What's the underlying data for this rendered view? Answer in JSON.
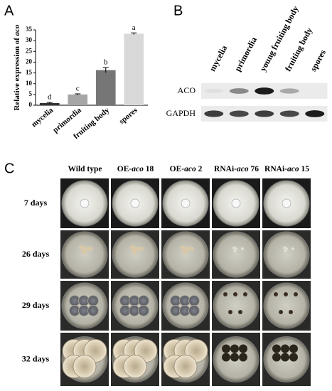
{
  "panel_labels": [
    "A",
    "B",
    "C"
  ],
  "chart_data": {
    "type": "bar",
    "ylabel": {
      "text": "Relative expression of ",
      "italic": "aco"
    },
    "categories": [
      "mycelia",
      "primordia",
      "fruiting body",
      "spores"
    ],
    "values": [
      1,
      5,
      16.3,
      33.2
    ],
    "errors": [
      0.3,
      0.3,
      1.2,
      0.4
    ],
    "annotations": [
      "d",
      "c",
      "b",
      "a"
    ],
    "colors": [
      "#333333",
      "#a6a6a6",
      "#767676",
      "#d9d9d9"
    ],
    "ylim": [
      0,
      35
    ],
    "yticks": [
      0,
      5,
      10,
      15,
      20,
      25,
      30,
      35
    ]
  },
  "western_blot": {
    "lanes": [
      "mycelia",
      "primordia",
      "young fruiting body",
      "fruiting body",
      "spores"
    ],
    "rows": [
      "ACO",
      "GAPDH"
    ]
  },
  "growth": {
    "columns": [
      {
        "text": "Wild type"
      },
      {
        "text": "OE-",
        "italic": "aco",
        "suffix": " 18"
      },
      {
        "text": "OE-",
        "italic": "aco",
        "suffix": " 2"
      },
      {
        "text": "RNAi-",
        "italic": "aco",
        "suffix": " 76"
      },
      {
        "text": "RNAi-",
        "italic": "aco",
        "suffix": " 15"
      }
    ],
    "rows": [
      "7 days",
      "26 days",
      "29 days",
      "32 days"
    ]
  }
}
